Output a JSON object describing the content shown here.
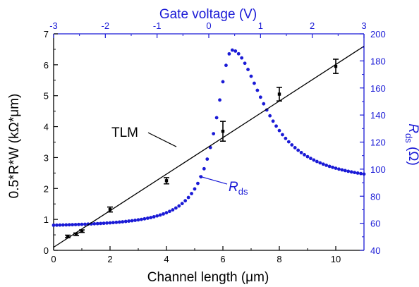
{
  "colors": {
    "left_axis": "#000000",
    "right_axis": "#1a1ad6",
    "tlm_line": "#000000",
    "rds_points": "#1a1ad6"
  },
  "chart_data": {
    "type": "scatter",
    "title": "",
    "x_bottom": {
      "label": "Channel length (μm)",
      "range": [
        0,
        11
      ],
      "ticks": [
        0,
        2,
        4,
        6,
        8,
        10
      ],
      "tick_labels": [
        "0",
        "2",
        "4",
        "6",
        "8",
        "10"
      ]
    },
    "y_left": {
      "label": "0.5*R*W (kΩ*μm)",
      "range": [
        0,
        7
      ],
      "ticks": [
        0,
        1,
        2,
        3,
        4,
        5,
        6,
        7
      ],
      "tick_labels": [
        "0",
        "1",
        "2",
        "3",
        "4",
        "5",
        "6",
        "7"
      ]
    },
    "x_top": {
      "label": "Gate voltage (V)",
      "range": [
        -3,
        3
      ],
      "ticks": [
        -3,
        -2,
        -1,
        0,
        1,
        2,
        3
      ],
      "tick_labels": [
        "-3",
        "-2",
        "-1",
        "0",
        "1",
        "2",
        "3"
      ]
    },
    "y_right": {
      "label_main": "R",
      "label_sub": "ds",
      "label_unit": " (Ω)",
      "range": [
        40,
        200
      ],
      "ticks": [
        40,
        60,
        80,
        100,
        120,
        140,
        160,
        180,
        200
      ],
      "tick_labels": [
        "40",
        "60",
        "80",
        "100",
        "120",
        "140",
        "160",
        "180",
        "200"
      ]
    },
    "tlm_fit": {
      "name": "TLM",
      "x": [
        0,
        11
      ],
      "y": [
        0.1,
        6.6
      ]
    },
    "tlm_measurements": {
      "x": [
        0.5,
        0.8,
        1,
        2,
        4,
        6,
        8,
        10
      ],
      "y": [
        0.45,
        0.52,
        0.62,
        1.32,
        2.25,
        3.85,
        5.05,
        5.95
      ],
      "err": [
        0.04,
        0.04,
        0.04,
        0.08,
        0.1,
        0.32,
        0.22,
        0.23
      ]
    },
    "rds_curve": {
      "name_main": "R",
      "name_sub": "ds",
      "model": {
        "base": 57,
        "peak": 188,
        "v0": 0.45,
        "width_left": 0.38,
        "width_right": 0.75,
        "tail_floor": 0.24
      },
      "v_range": [
        -3,
        3
      ],
      "point_count": 100
    },
    "annotations": [
      {
        "text": "TLM",
        "x_data": 2.8,
        "y_data": 3.85,
        "arrow_to": [
          4.35,
          3.35
        ]
      },
      {
        "text_main": "R",
        "text_sub": "ds",
        "x_data": 6.3,
        "y_data": 2.05,
        "arrow_to": [
          5.15,
          2.4
        ]
      }
    ]
  }
}
